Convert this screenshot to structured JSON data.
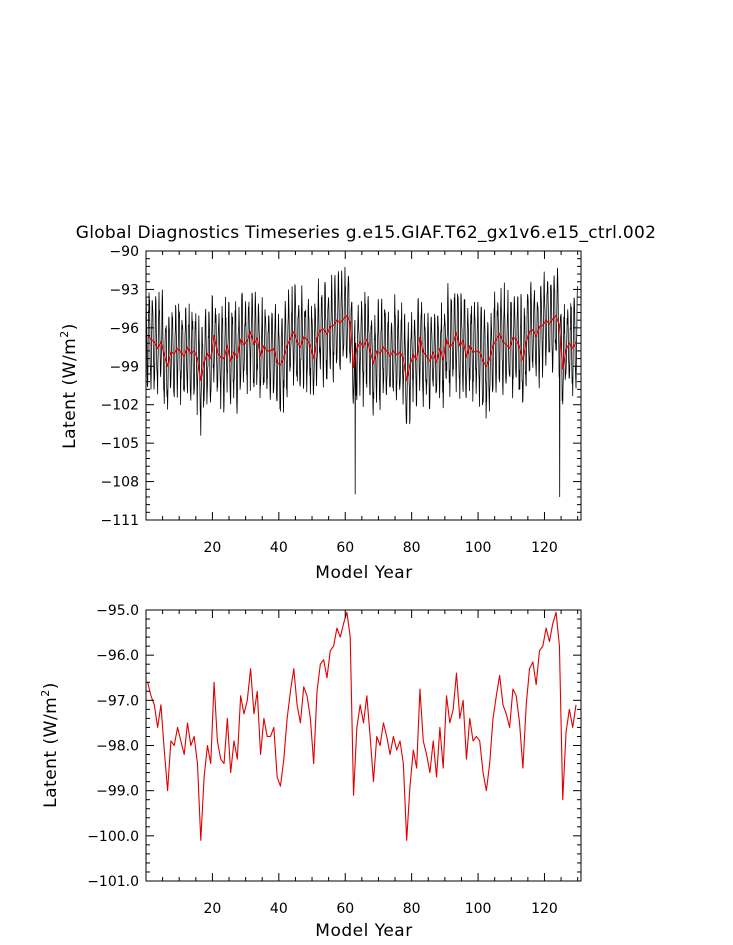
{
  "title": "Global Diagnostics Timeseries g.e15.GIAF.T62_gx1v6.e15_ctrl.002",
  "colors": {
    "raw_series": "#000000",
    "smoothed_series": "#e00000",
    "axis": "#000000"
  },
  "chart_data": [
    {
      "type": "line",
      "panel": "top",
      "title": "Global Diagnostics Timeseries g.e15.GIAF.T62_gx1v6.e15_ctrl.002",
      "xlabel": "Model Year",
      "ylabel": "Latent (W/m",
      "ylabel_sup": "2",
      "ylabel_close": ")",
      "xlim": [
        0,
        131
      ],
      "ylim": [
        -111,
        -90
      ],
      "xticks": [
        20,
        40,
        60,
        80,
        100,
        120
      ],
      "xtick_labels": [
        "20",
        "40",
        "60",
        "80",
        "100",
        "120"
      ],
      "yticks": [
        -90,
        -93,
        -96,
        -99,
        -102,
        -105,
        -108,
        -111
      ],
      "ytick_labels": [
        "-90",
        "-93",
        "-96",
        "-99",
        "-102",
        "-105",
        "-108",
        "-111"
      ],
      "series_note": "Monthly values (black) are a dense oscillation of roughly ±3.5 W/m2 around the annual means (red); spikes near year 63 (-109) and year 124.5 (-109.2).",
      "series": [
        {
          "name": "monthly",
          "color": "#000000",
          "generator": "annual_mean + seasonal_oscillation",
          "amplitude": 3.4,
          "spikes": [
            {
              "x": 63.0,
              "y": -109.0
            },
            {
              "x": 124.6,
              "y": -109.2
            }
          ]
        },
        {
          "name": "annual mean",
          "color": "#e00000",
          "source": "annual"
        }
      ]
    },
    {
      "type": "line",
      "panel": "bottom",
      "xlabel": "Model Year",
      "ylabel": "Latent (W/m",
      "ylabel_sup": "2",
      "ylabel_close": ")",
      "xlim": [
        0,
        131
      ],
      "ylim": [
        -101.0,
        -95.0
      ],
      "xticks": [
        20,
        40,
        60,
        80,
        100,
        120
      ],
      "xtick_labels": [
        "20",
        "40",
        "60",
        "80",
        "100",
        "120"
      ],
      "yticks": [
        -95.0,
        -96.0,
        -97.0,
        -98.0,
        -99.0,
        -100.0,
        -101.0
      ],
      "ytick_labels": [
        "-95.0",
        "-96.0",
        "-97.0",
        "-98.0",
        "-99.0",
        "-100.0",
        "-101.0"
      ],
      "series": [
        {
          "name": "annual mean",
          "color": "#e00000",
          "x_start": 0.5,
          "x_step": 1,
          "values": [
            -96.6,
            -96.9,
            -97.1,
            -97.6,
            -97.1,
            -98.1,
            -99.0,
            -97.9,
            -98.0,
            -97.6,
            -97.9,
            -98.2,
            -97.5,
            -98.0,
            -97.8,
            -98.4,
            -100.1,
            -98.7,
            -98.0,
            -98.4,
            -96.6,
            -97.9,
            -98.3,
            -98.4,
            -97.4,
            -98.6,
            -97.9,
            -98.3,
            -96.9,
            -97.3,
            -97.0,
            -96.3,
            -97.3,
            -96.8,
            -98.2,
            -97.4,
            -97.8,
            -97.8,
            -97.6,
            -98.7,
            -98.9,
            -98.3,
            -97.4,
            -96.8,
            -96.3,
            -97.1,
            -97.5,
            -96.7,
            -96.9,
            -97.4,
            -98.4,
            -96.8,
            -96.2,
            -96.1,
            -96.5,
            -95.9,
            -95.8,
            -95.4,
            -95.6,
            -95.3,
            -95.05,
            -95.6,
            -99.1,
            -97.6,
            -97.1,
            -97.5,
            -96.9,
            -97.8,
            -98.8,
            -97.8,
            -98.0,
            -97.5,
            -97.8,
            -98.2,
            -97.8,
            -98.1,
            -97.9,
            -98.4,
            -100.1,
            -98.9,
            -98.1,
            -98.5,
            -96.75,
            -97.9,
            -98.2,
            -98.6,
            -97.9,
            -98.7,
            -97.6,
            -98.5,
            -96.9,
            -97.5,
            -97.2,
            -96.4,
            -97.4,
            -97.0,
            -98.3,
            -97.4,
            -97.9,
            -97.8,
            -97.9,
            -98.6,
            -99.0,
            -98.4,
            -97.4,
            -96.9,
            -96.45,
            -97.1,
            -97.3,
            -97.6,
            -96.75,
            -96.9,
            -97.5,
            -98.5,
            -97.1,
            -96.3,
            -96.15,
            -96.65,
            -95.9,
            -95.8,
            -95.4,
            -95.7,
            -95.3,
            -95.05,
            -95.8,
            -99.2,
            -97.7,
            -97.2,
            -97.6,
            -97.1
          ]
        }
      ]
    }
  ]
}
